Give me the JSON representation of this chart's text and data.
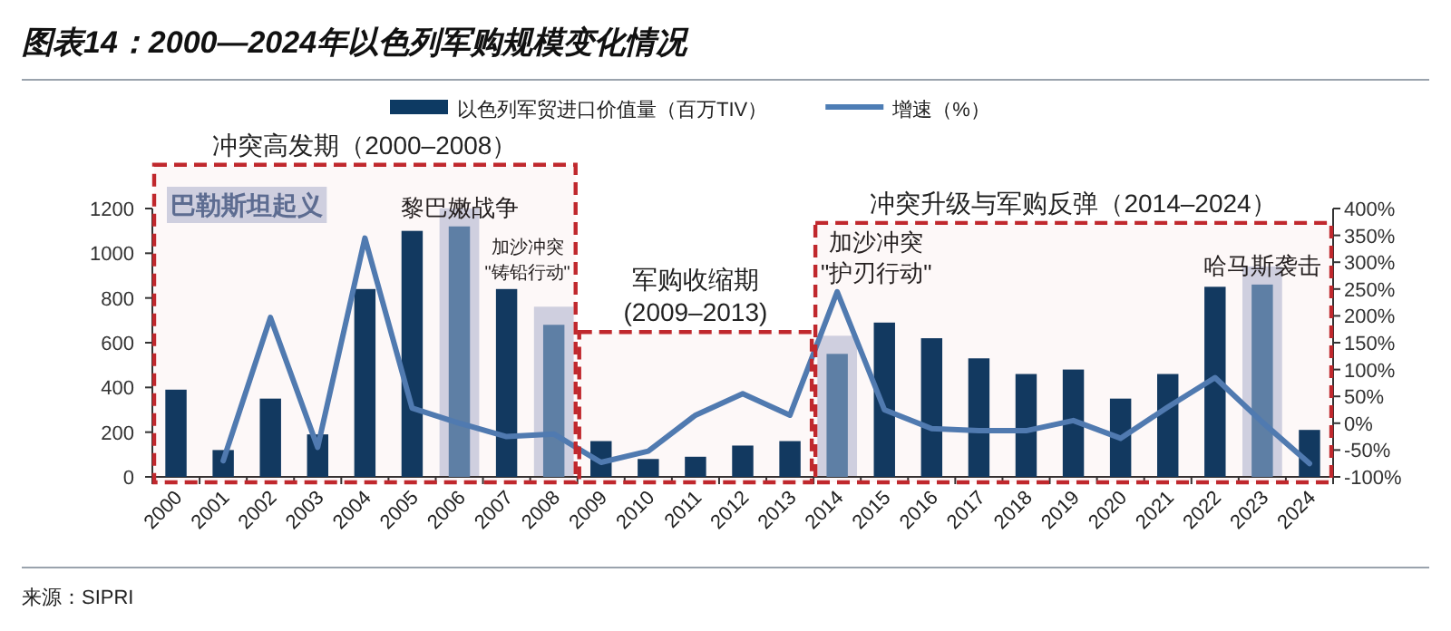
{
  "chart_data": {
    "type": "bar",
    "title": "图表14：2000—2024年以色列军购规模变化情况",
    "categories": [
      "2000",
      "2001",
      "2002",
      "2003",
      "2004",
      "2005",
      "2006",
      "2007",
      "2008",
      "2009",
      "2010",
      "2011",
      "2012",
      "2013",
      "2014",
      "2015",
      "2016",
      "2017",
      "2018",
      "2019",
      "2020",
      "2021",
      "2022",
      "2023",
      "2024"
    ],
    "series": [
      {
        "name": "以色列军贸进口价值量（百万TIV）",
        "color": "#0d3a63",
        "colors": [
          "#0d3a63",
          "#0d3a63",
          "#0d3a63",
          "#0d3a63",
          "#0d3a63",
          "#0d3a63",
          "#5b83aa",
          "#0d3a63",
          "#5b83aa",
          "#0d3a63",
          "#0d3a63",
          "#0d3a63",
          "#0d3a63",
          "#0d3a63",
          "#5b83aa",
          "#0d3a63",
          "#0d3a63",
          "#0d3a63",
          "#0d3a63",
          "#0d3a63",
          "#0d3a63",
          "#0d3a63",
          "#0d3a63",
          "#5b83aa",
          "#0d3a63"
        ],
        "values": [
          390,
          120,
          350,
          190,
          840,
          1100,
          1120,
          840,
          680,
          160,
          80,
          90,
          140,
          160,
          550,
          690,
          620,
          530,
          460,
          480,
          350,
          460,
          850,
          860,
          210
        ]
      },
      {
        "name": "增速（%）",
        "type": "line",
        "axis": "y2",
        "color": "#4d7db5",
        "values": [
          null,
          -70,
          197,
          -45,
          345,
          28,
          0,
          -25,
          -20,
          -73,
          -52,
          15,
          55,
          15,
          245,
          25,
          -10,
          -14,
          -14,
          5,
          -28,
          30,
          85,
          2,
          -75
        ]
      }
    ],
    "ylim": [
      0,
      1200
    ],
    "yticks": [
      0,
      200,
      400,
      600,
      800,
      1000,
      1200
    ],
    "y2lim": [
      -100,
      400
    ],
    "y2ticks": [
      {
        "value": -100,
        "label": "-100%"
      },
      {
        "value": -50,
        "label": "-50%"
      },
      {
        "value": 0,
        "label": "0%"
      },
      {
        "value": 50,
        "label": "50%"
      },
      {
        "value": 100,
        "label": "100%"
      },
      {
        "value": 150,
        "label": "150%"
      },
      {
        "value": 200,
        "label": "200%"
      },
      {
        "value": 250,
        "label": "250%"
      },
      {
        "value": 300,
        "label": "300%"
      },
      {
        "value": 350,
        "label": "350%"
      },
      {
        "value": 400,
        "label": "400%"
      }
    ],
    "bands": [
      {
        "axis": "x",
        "from": "2000",
        "to": "2008",
        "label": "冲突高发期（2000–2008）",
        "color": "#c0282d"
      },
      {
        "axis": "x",
        "from": "2009",
        "to": "2013",
        "label": "军购收缩期\n(2009–2013)",
        "color": "#c0282d"
      },
      {
        "axis": "x",
        "from": "2014",
        "to": "2024",
        "label": "冲突升级与军购反弹（2014–2024）",
        "color": "#c0282d"
      },
      {
        "axis": "x",
        "from": "2000",
        "to": "2003",
        "label": "巴勒斯坦起义",
        "color": "#d0d5e6"
      },
      {
        "axis": "x",
        "from": "2006",
        "to": "2006",
        "label": "黎巴嫩战争",
        "color": "#d0d5e6"
      },
      {
        "axis": "x",
        "from": "2008",
        "to": "2008",
        "label": "加沙冲突\n\"铸铅行动\"",
        "color": "#d0d5e6"
      },
      {
        "axis": "x",
        "from": "2014",
        "to": "2014",
        "label": "加沙冲突\n\"护刃行动\"",
        "color": "#d0d5e6"
      },
      {
        "axis": "x",
        "from": "2023",
        "to": "2023",
        "label": "哈马斯袭击",
        "color": "#d0d5e6"
      }
    ],
    "legend": "top",
    "grid": false,
    "annotations": [
      "来源：SIPRI"
    ]
  }
}
